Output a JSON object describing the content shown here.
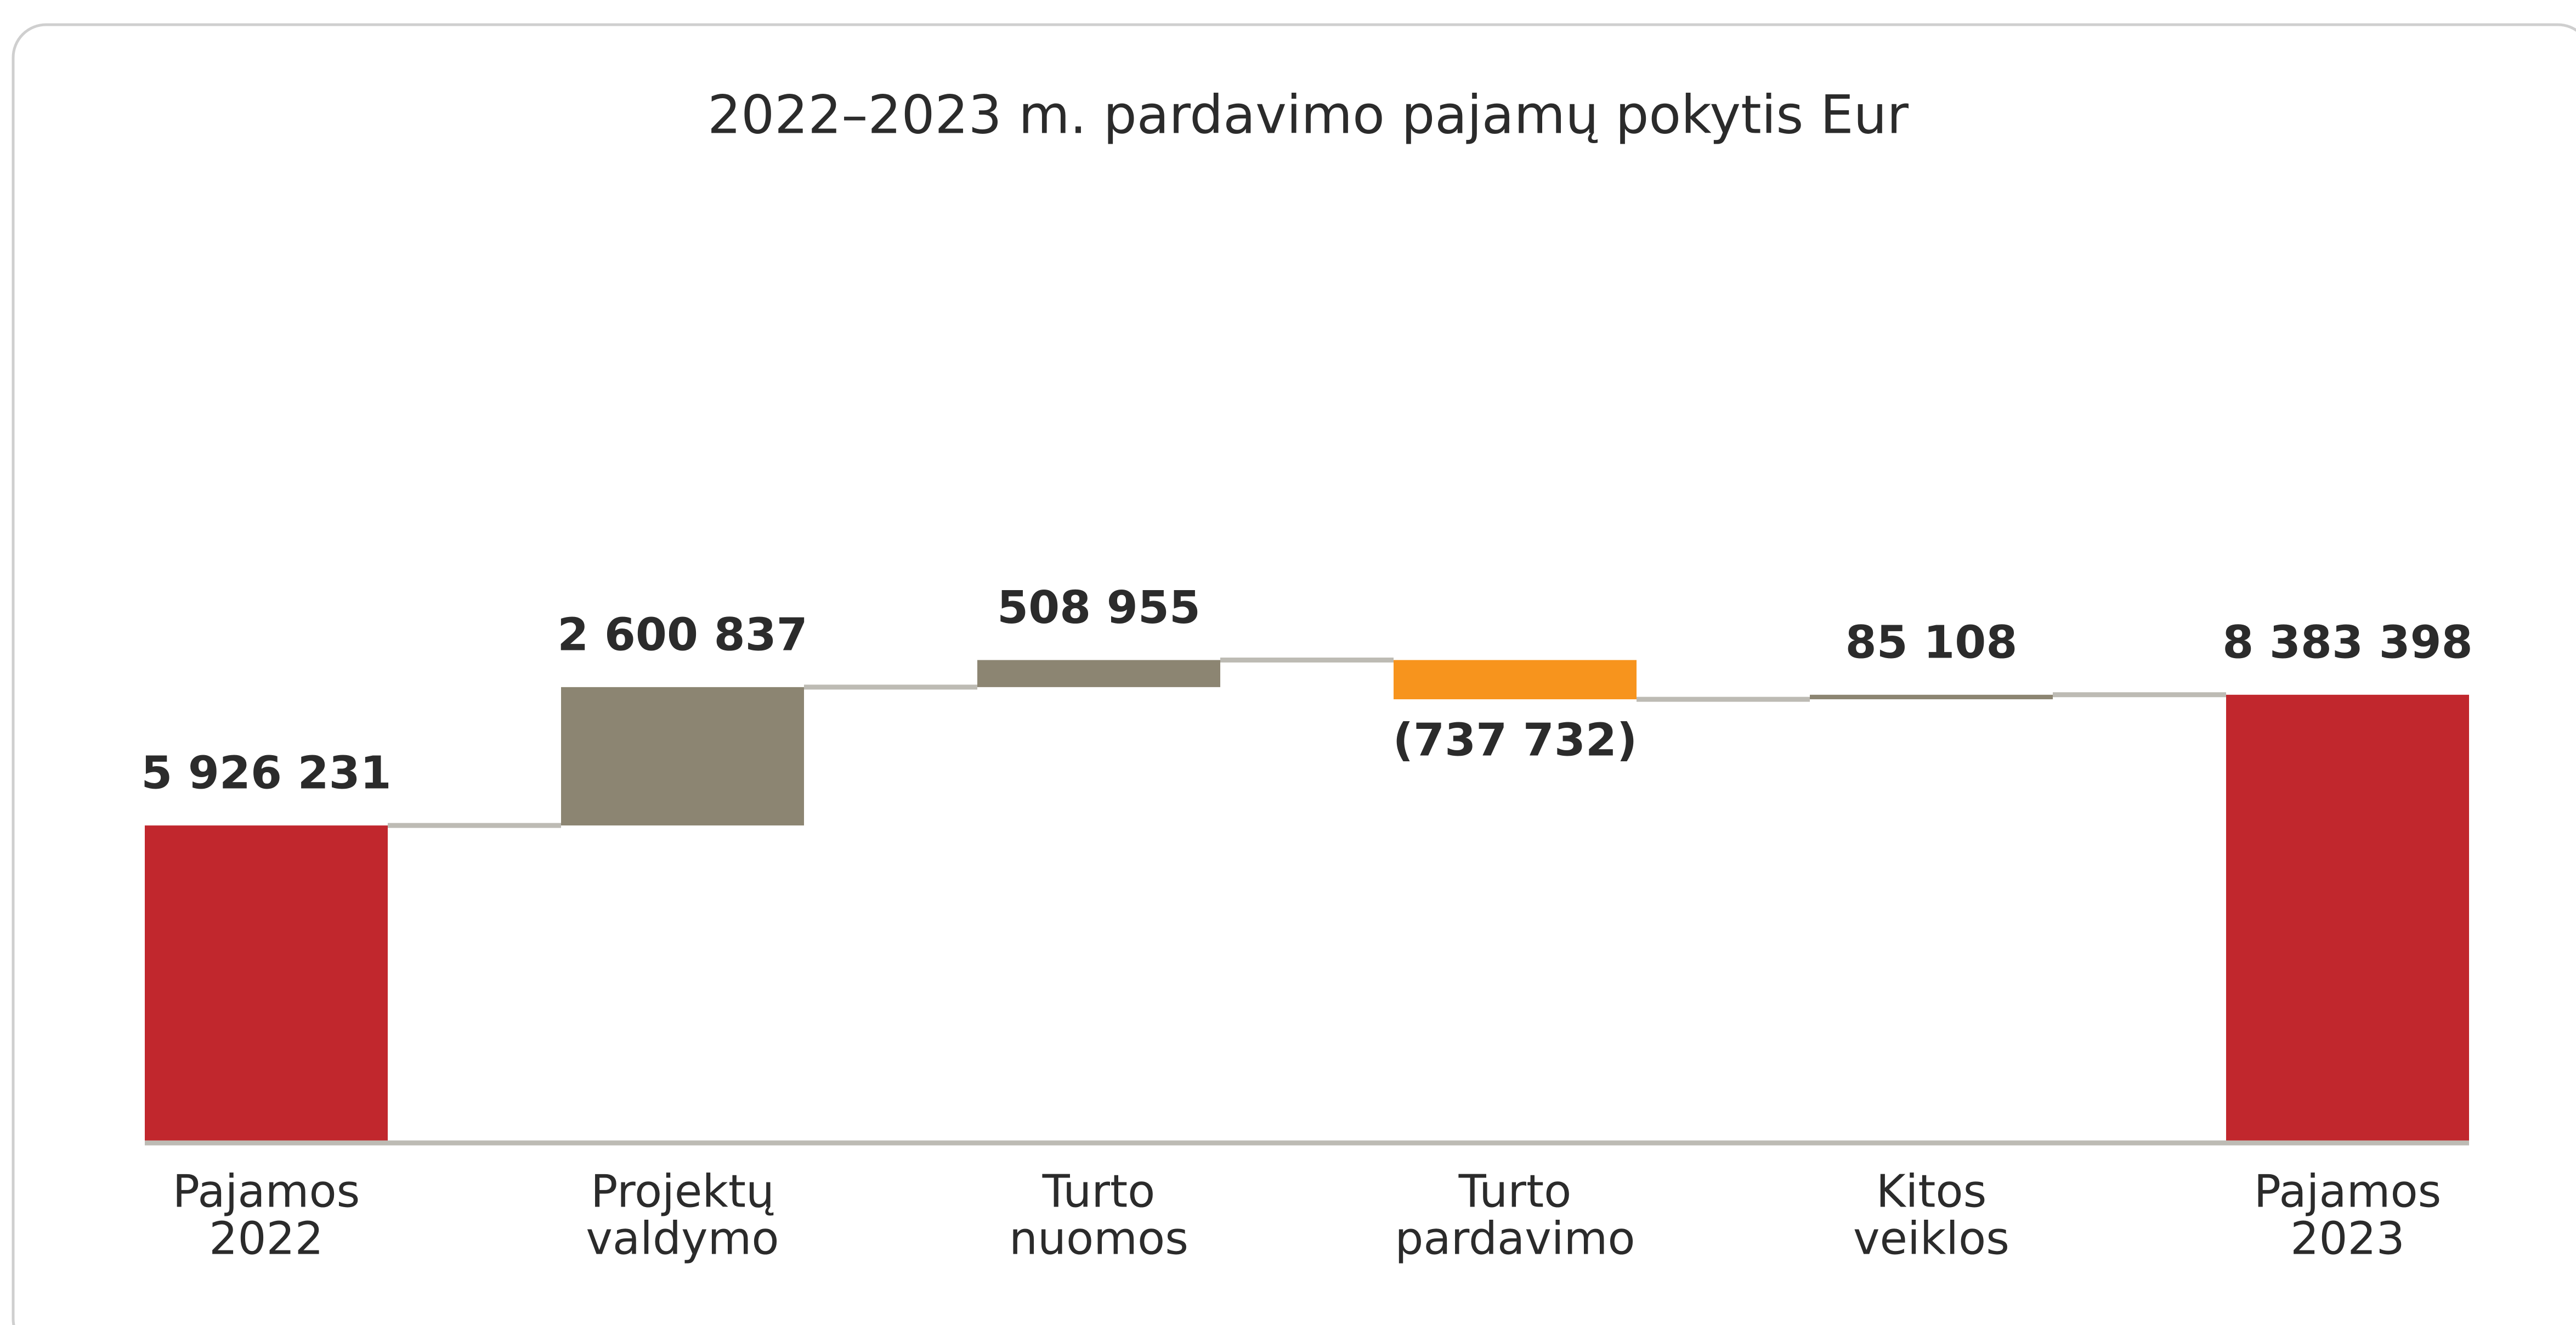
{
  "chart_data": {
    "type": "waterfall",
    "title": "2022–2023 m. pardavimo pajamų pokytis Eur",
    "categories": [
      [
        "Pajamos",
        "2022"
      ],
      [
        "Projektų",
        "valdymo"
      ],
      [
        "Turto",
        "nuomos"
      ],
      [
        "Turto",
        "pardavimo"
      ],
      [
        "Kitos",
        "veiklos"
      ],
      [
        "Pajamos",
        "2023"
      ]
    ],
    "measure": [
      "absolute",
      "relative",
      "relative",
      "relative",
      "relative",
      "total"
    ],
    "values": [
      5926231,
      2600837,
      508955,
      -737732,
      85108,
      8383398
    ],
    "value_labels": [
      "5 926 231",
      "2 600 837",
      "508 955",
      "(737 732)",
      "85 108",
      "8 383 398"
    ],
    "colors": [
      "#c1272d",
      "#8c8572",
      "#8c8572",
      "#f7941d",
      "#8c8572",
      "#c1272d"
    ],
    "connector_color": "#bdbbb4",
    "ylim": [
      0,
      9000000
    ]
  }
}
